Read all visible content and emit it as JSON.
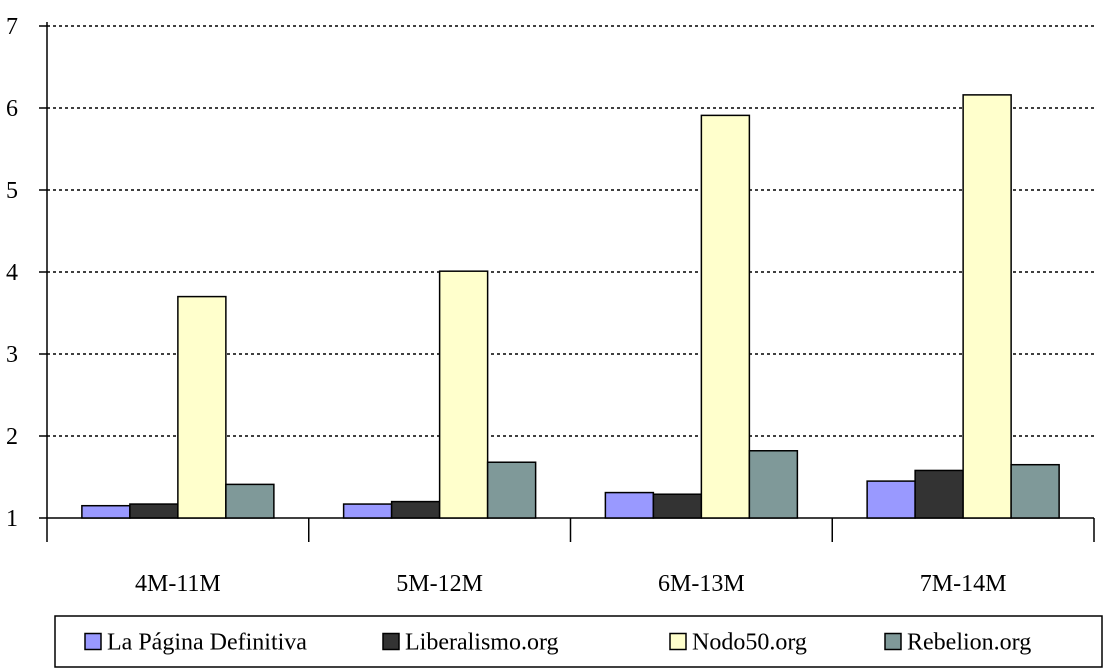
{
  "chart_data": {
    "type": "bar",
    "categories": [
      "4M-11M",
      "5M-12M",
      "6M-13M",
      "7M-14M"
    ],
    "series": [
      {
        "name": "La Página Definitiva",
        "color": "#9999ff",
        "values": [
          1.15,
          1.17,
          1.31,
          1.45
        ]
      },
      {
        "name": "Liberalismo.org",
        "color": "#333333",
        "values": [
          1.17,
          1.2,
          1.29,
          1.58
        ]
      },
      {
        "name": "Nodo50.org",
        "color": "#ffffcc",
        "values": [
          3.7,
          4.01,
          5.91,
          6.16
        ]
      },
      {
        "name": "Rebelion.org",
        "color": "#7f9999",
        "values": [
          1.41,
          1.68,
          1.82,
          1.65
        ]
      }
    ],
    "yticks": [
      "1",
      "2",
      "3",
      "4",
      "5",
      "6",
      "7"
    ],
    "ylim": [
      1,
      7
    ],
    "grid": "dotted horizontal",
    "legend_position": "bottom"
  }
}
